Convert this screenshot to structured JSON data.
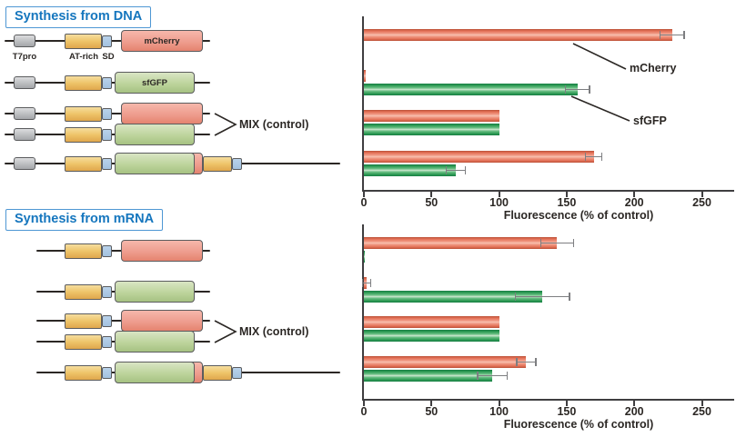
{
  "panels": {
    "dna": {
      "title": "Synthesis from DNA",
      "mix_label": "MIX (control)"
    },
    "mrna": {
      "title": "Synthesis from mRNA",
      "mix_label": "MIX (control)"
    }
  },
  "colors": {
    "accent_blue": "#1576be",
    "mcherry_bar": "#e87a62",
    "sfgfp_bar": "#3aa55c",
    "t7pro_box": "#b9bbbe",
    "atrich_box": "#ecc165",
    "sd_box": "#a9c7e4",
    "mcherry_orf_box": "#ee9d8e",
    "sfgfp_orf_box": "#bdd49c",
    "error_bar": "#7d7e81",
    "ink": "#2b2724"
  },
  "constructs": {
    "part_names": {
      "t7pro": "T7pro",
      "atrich": "AT-rich",
      "sd": "SD",
      "mcherry": "mCherry",
      "sfgfp": "sfGFP"
    },
    "dna_rows": [
      {
        "elements": [
          "t7pro",
          "atrich",
          "sd",
          "mcherry"
        ],
        "orf_label": "mCherry",
        "part_labels": [
          {
            "text": "T7pro"
          },
          {
            "text": "AT-rich"
          },
          {
            "text": "SD"
          }
        ]
      },
      {
        "elements": [
          "t7pro",
          "atrich",
          "sd",
          "sfgfp"
        ],
        "orf_label": "sfGFP"
      },
      {
        "elements": [
          "t7pro",
          "atrich",
          "sd",
          "mcherry"
        ]
      },
      {
        "elements": [
          "t7pro",
          "atrich",
          "sd",
          "sfgfp"
        ]
      },
      {
        "elements": [
          "t7pro",
          "atrich",
          "sd",
          "mcherry",
          "atrich",
          "sd",
          "sfgfp"
        ]
      }
    ],
    "mrna_rows": [
      {
        "elements": [
          "atrich",
          "sd",
          "mcherry"
        ]
      },
      {
        "elements": [
          "atrich",
          "sd",
          "sfgfp"
        ]
      },
      {
        "elements": [
          "atrich",
          "sd",
          "mcherry"
        ]
      },
      {
        "elements": [
          "atrich",
          "sd",
          "sfgfp"
        ]
      },
      {
        "elements": [
          "atrich",
          "sd",
          "mcherry",
          "atrich",
          "sd",
          "sfgfp"
        ]
      }
    ]
  },
  "chart_data": [
    {
      "type": "bar",
      "orientation": "horizontal",
      "panel": "Synthesis from DNA",
      "xlabel": "Fluorescence (% of control)",
      "xticks": [
        0,
        50,
        100,
        150,
        200,
        250
      ],
      "xlim": [
        0,
        274
      ],
      "grid": false,
      "series": [
        {
          "name": "mCherry",
          "color": "#e87a62"
        },
        {
          "name": "sfGFP",
          "color": "#3aa55c"
        }
      ],
      "annotations": [
        {
          "text": "mCherry"
        },
        {
          "text": "sfGFP"
        }
      ],
      "groups": [
        {
          "mCherry": {
            "value": 228,
            "err": 9
          },
          "sfGFP": {
            "value": 0,
            "err": 0
          }
        },
        {
          "mCherry": {
            "value": 1.5,
            "err": 0
          },
          "sfGFP": {
            "value": 158,
            "err": 9
          }
        },
        {
          "mCherry": {
            "value": 100,
            "err": 0
          },
          "sfGFP": {
            "value": 100,
            "err": 0
          }
        },
        {
          "mCherry": {
            "value": 170,
            "err": 6
          },
          "sfGFP": {
            "value": 68,
            "err": 7
          }
        }
      ]
    },
    {
      "type": "bar",
      "orientation": "horizontal",
      "panel": "Synthesis from mRNA",
      "xlabel": "Fluorescence (% of control)",
      "xticks": [
        0,
        50,
        100,
        150,
        200,
        250
      ],
      "xlim": [
        0,
        274
      ],
      "grid": false,
      "series": [
        {
          "name": "mCherry",
          "color": "#e87a62"
        },
        {
          "name": "sfGFP",
          "color": "#3aa55c"
        }
      ],
      "annotations": [],
      "groups": [
        {
          "mCherry": {
            "value": 143,
            "err": 12
          },
          "sfGFP": {
            "value": 1,
            "err": 0
          }
        },
        {
          "mCherry": {
            "value": 2,
            "err": 3
          },
          "sfGFP": {
            "value": 132,
            "err": 20
          }
        },
        {
          "mCherry": {
            "value": 100,
            "err": 0
          },
          "sfGFP": {
            "value": 100,
            "err": 0
          }
        },
        {
          "mCherry": {
            "value": 120,
            "err": 7
          },
          "sfGFP": {
            "value": 95,
            "err": 11
          }
        }
      ]
    }
  ]
}
